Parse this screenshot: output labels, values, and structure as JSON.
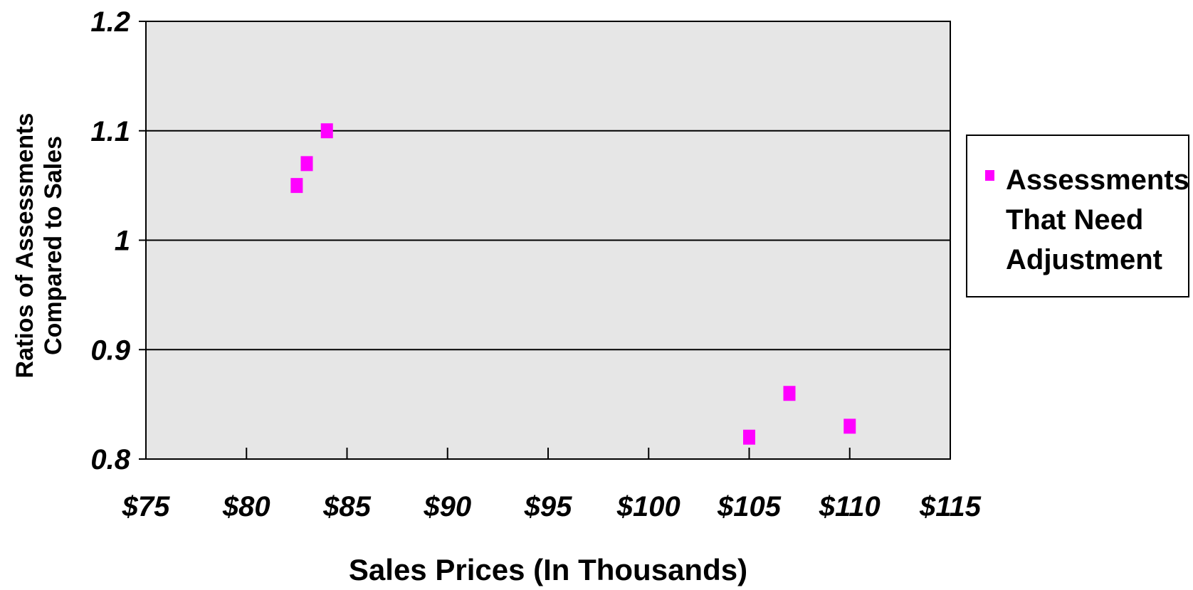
{
  "chart_data": {
    "type": "scatter",
    "title": "",
    "xlabel": "Sales Prices (In Thousands)",
    "ylabel_lines": [
      "Ratios of Assessments",
      "Compared to Sales"
    ],
    "xlim": [
      75,
      115
    ],
    "ylim": [
      0.8,
      1.2
    ],
    "x_ticks": [
      75,
      80,
      85,
      90,
      95,
      100,
      105,
      110,
      115
    ],
    "x_tick_labels": [
      "$75",
      "$80",
      "$85",
      "$90",
      "$95",
      "$100",
      "$105",
      "$110",
      "$115"
    ],
    "y_ticks": [
      0.8,
      0.9,
      1.0,
      1.1,
      1.2
    ],
    "y_tick_labels": [
      "0.8",
      "0.9",
      "1",
      "1.1",
      "1.2"
    ],
    "grid": "horizontal",
    "plot_background": "#E6E6E6",
    "legend_position": "right",
    "series": [
      {
        "name": "Assessments That Need Adjustment",
        "legend_lines": [
          "Assessments",
          "That Need",
          "Adjustment"
        ],
        "color": "#FF00FF",
        "marker": "square",
        "points": [
          {
            "x": 82.5,
            "y": 1.05
          },
          {
            "x": 83,
            "y": 1.07
          },
          {
            "x": 84,
            "y": 1.1
          },
          {
            "x": 105,
            "y": 0.82
          },
          {
            "x": 107,
            "y": 0.86
          },
          {
            "x": 110,
            "y": 0.83
          }
        ]
      }
    ]
  }
}
